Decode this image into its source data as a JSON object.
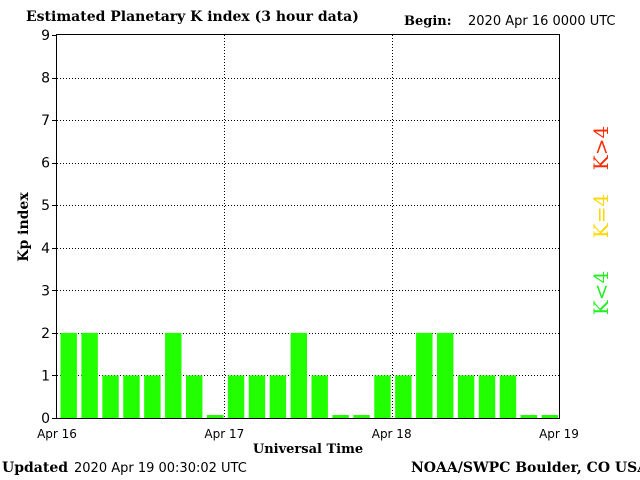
{
  "header": {
    "title": "Estimated Planetary K index (3 hour data)",
    "begin_label": "Begin:",
    "begin_value": "2020 Apr 16 0000 UTC"
  },
  "footer": {
    "updated_label": "Updated",
    "updated_value": "2020 Apr 19 00:30:02 UTC",
    "credit": "NOAA/SWPC Boulder, CO USA"
  },
  "legend": [
    {
      "text": "K>4",
      "color": "#ff2a00"
    },
    {
      "text": "K=4",
      "color": "#ffd700"
    },
    {
      "text": "K<4",
      "color": "#22ee22"
    }
  ],
  "chart_data": {
    "type": "bar",
    "title": "Estimated Planetary K index (3 hour data)",
    "xlabel": "Universal Time",
    "ylabel": "Kp index",
    "ylim": [
      0,
      9
    ],
    "yticks": [
      0,
      1,
      2,
      3,
      4,
      5,
      6,
      7,
      8,
      9
    ],
    "xticks": [
      "Apr 16",
      "Apr 17",
      "Apr 18",
      "Apr 19"
    ],
    "grid": true,
    "bar_color": "#22ff00",
    "values": [
      2,
      2,
      1,
      1,
      1,
      2,
      1,
      0,
      1,
      1,
      1,
      2,
      1,
      0,
      0,
      1,
      1,
      2,
      2,
      1,
      1,
      1,
      0,
      0
    ]
  }
}
